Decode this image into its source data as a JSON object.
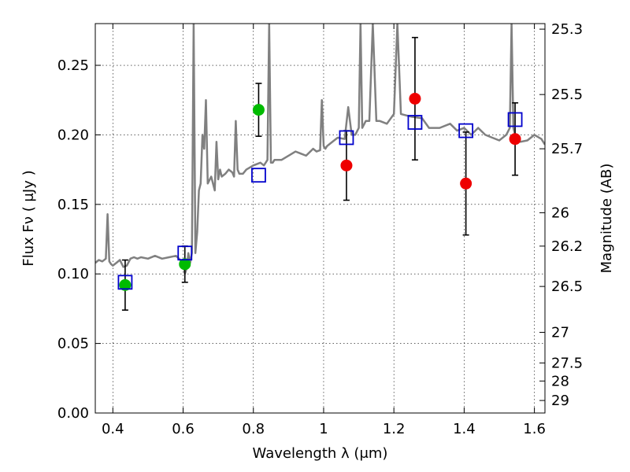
{
  "chart_data": {
    "type": "scatter",
    "xlabel": "Wavelength  λ (μm)",
    "ylabel": "Flux  Fν  ( μJy )",
    "y2label": "Magnitude (AB)",
    "xlim": [
      0.35,
      1.63
    ],
    "ylim": [
      0.0,
      0.28
    ],
    "grid": true,
    "x_ticks": [
      0.4,
      0.6,
      0.8,
      1.0,
      1.2,
      1.4,
      1.6
    ],
    "x_tick_labels": [
      "0.4",
      "0.6",
      "0.8",
      "1",
      "1.2",
      "1.4",
      "1.6"
    ],
    "y_ticks": [
      0.0,
      0.05,
      0.1,
      0.15,
      0.2,
      0.25
    ],
    "y_tick_labels": [
      "0.00",
      "0.05",
      "0.10",
      "0.15",
      "0.20",
      "0.25"
    ],
    "y2_ticks": [
      {
        "label": "25.3",
        "flux": 0.276
      },
      {
        "label": "25.5",
        "flux": 0.229
      },
      {
        "label": "25.7",
        "flux": 0.19
      },
      {
        "label": "26",
        "flux": 0.144
      },
      {
        "label": "26.2",
        "flux": 0.12
      },
      {
        "label": "26.5",
        "flux": 0.091
      },
      {
        "label": "27",
        "flux": 0.058
      },
      {
        "label": "27.5",
        "flux": 0.036
      },
      {
        "label": "28",
        "flux": 0.023
      },
      {
        "label": "29",
        "flux": 0.009
      }
    ],
    "series": [
      {
        "kind": "line",
        "color": "#808080",
        "x": [
          0.35,
          0.36,
          0.37,
          0.38,
          0.385,
          0.39,
          0.395,
          0.4,
          0.41,
          0.42,
          0.43,
          0.44,
          0.45,
          0.46,
          0.47,
          0.48,
          0.5,
          0.52,
          0.54,
          0.56,
          0.58,
          0.6,
          0.605,
          0.61,
          0.615,
          0.62,
          0.625,
          0.63,
          0.635,
          0.64,
          0.645,
          0.65,
          0.655,
          0.66,
          0.665,
          0.67,
          0.68,
          0.69,
          0.695,
          0.7,
          0.705,
          0.71,
          0.72,
          0.73,
          0.74,
          0.745,
          0.75,
          0.755,
          0.76,
          0.77,
          0.78,
          0.8,
          0.82,
          0.83,
          0.84,
          0.845,
          0.85,
          0.855,
          0.86,
          0.88,
          0.9,
          0.92,
          0.95,
          0.97,
          0.98,
          0.99,
          0.995,
          1.0,
          1.005,
          1.01,
          1.02,
          1.04,
          1.06,
          1.07,
          1.08,
          1.09,
          1.1,
          1.105,
          1.11,
          1.12,
          1.13,
          1.14,
          1.15,
          1.16,
          1.18,
          1.2,
          1.21,
          1.22,
          1.25,
          1.28,
          1.3,
          1.33,
          1.36,
          1.38,
          1.4,
          1.42,
          1.44,
          1.46,
          1.48,
          1.5,
          1.52,
          1.53,
          1.535,
          1.54,
          1.545,
          1.55,
          1.56,
          1.58,
          1.6,
          1.62,
          1.63
        ],
        "y": [
          0.108,
          0.11,
          0.109,
          0.111,
          0.143,
          0.109,
          0.107,
          0.106,
          0.108,
          0.11,
          0.105,
          0.106,
          0.111,
          0.112,
          0.111,
          0.112,
          0.111,
          0.113,
          0.111,
          0.112,
          0.113,
          0.108,
          0.1,
          0.104,
          0.115,
          0.108,
          0.115,
          0.28,
          0.115,
          0.13,
          0.16,
          0.165,
          0.2,
          0.19,
          0.225,
          0.165,
          0.17,
          0.16,
          0.195,
          0.168,
          0.175,
          0.17,
          0.172,
          0.175,
          0.173,
          0.17,
          0.21,
          0.175,
          0.172,
          0.172,
          0.175,
          0.178,
          0.18,
          0.178,
          0.182,
          0.28,
          0.18,
          0.18,
          0.182,
          0.182,
          0.185,
          0.188,
          0.185,
          0.19,
          0.188,
          0.189,
          0.225,
          0.192,
          0.19,
          0.192,
          0.194,
          0.198,
          0.197,
          0.22,
          0.2,
          0.2,
          0.205,
          0.28,
          0.205,
          0.21,
          0.21,
          0.28,
          0.21,
          0.21,
          0.208,
          0.215,
          0.28,
          0.215,
          0.213,
          0.212,
          0.205,
          0.205,
          0.208,
          0.203,
          0.205,
          0.2,
          0.205,
          0.2,
          0.198,
          0.196,
          0.2,
          0.205,
          0.28,
          0.205,
          0.2,
          0.198,
          0.195,
          0.196,
          0.2,
          0.197,
          0.193
        ]
      },
      {
        "kind": "points",
        "marker": "circle",
        "color": "#00bb00",
        "x": [
          0.435,
          0.605,
          0.815
        ],
        "y": [
          0.092,
          0.107,
          0.218
        ],
        "yerr": [
          0.018,
          0.013,
          0.019
        ]
      },
      {
        "kind": "points",
        "marker": "circle",
        "color": "#ee0000",
        "x": [
          1.065,
          1.26,
          1.405,
          1.545
        ],
        "y": [
          0.178,
          0.226,
          0.165,
          0.197
        ],
        "yerr": [
          0.025,
          0.044,
          0.037,
          0.026
        ]
      },
      {
        "kind": "points",
        "marker": "open-square",
        "color": "#0000cc",
        "x": [
          0.435,
          0.605,
          0.815,
          1.065,
          1.26,
          1.405,
          1.545
        ],
        "y": [
          0.094,
          0.115,
          0.171,
          0.198,
          0.209,
          0.203,
          0.211
        ]
      }
    ]
  }
}
